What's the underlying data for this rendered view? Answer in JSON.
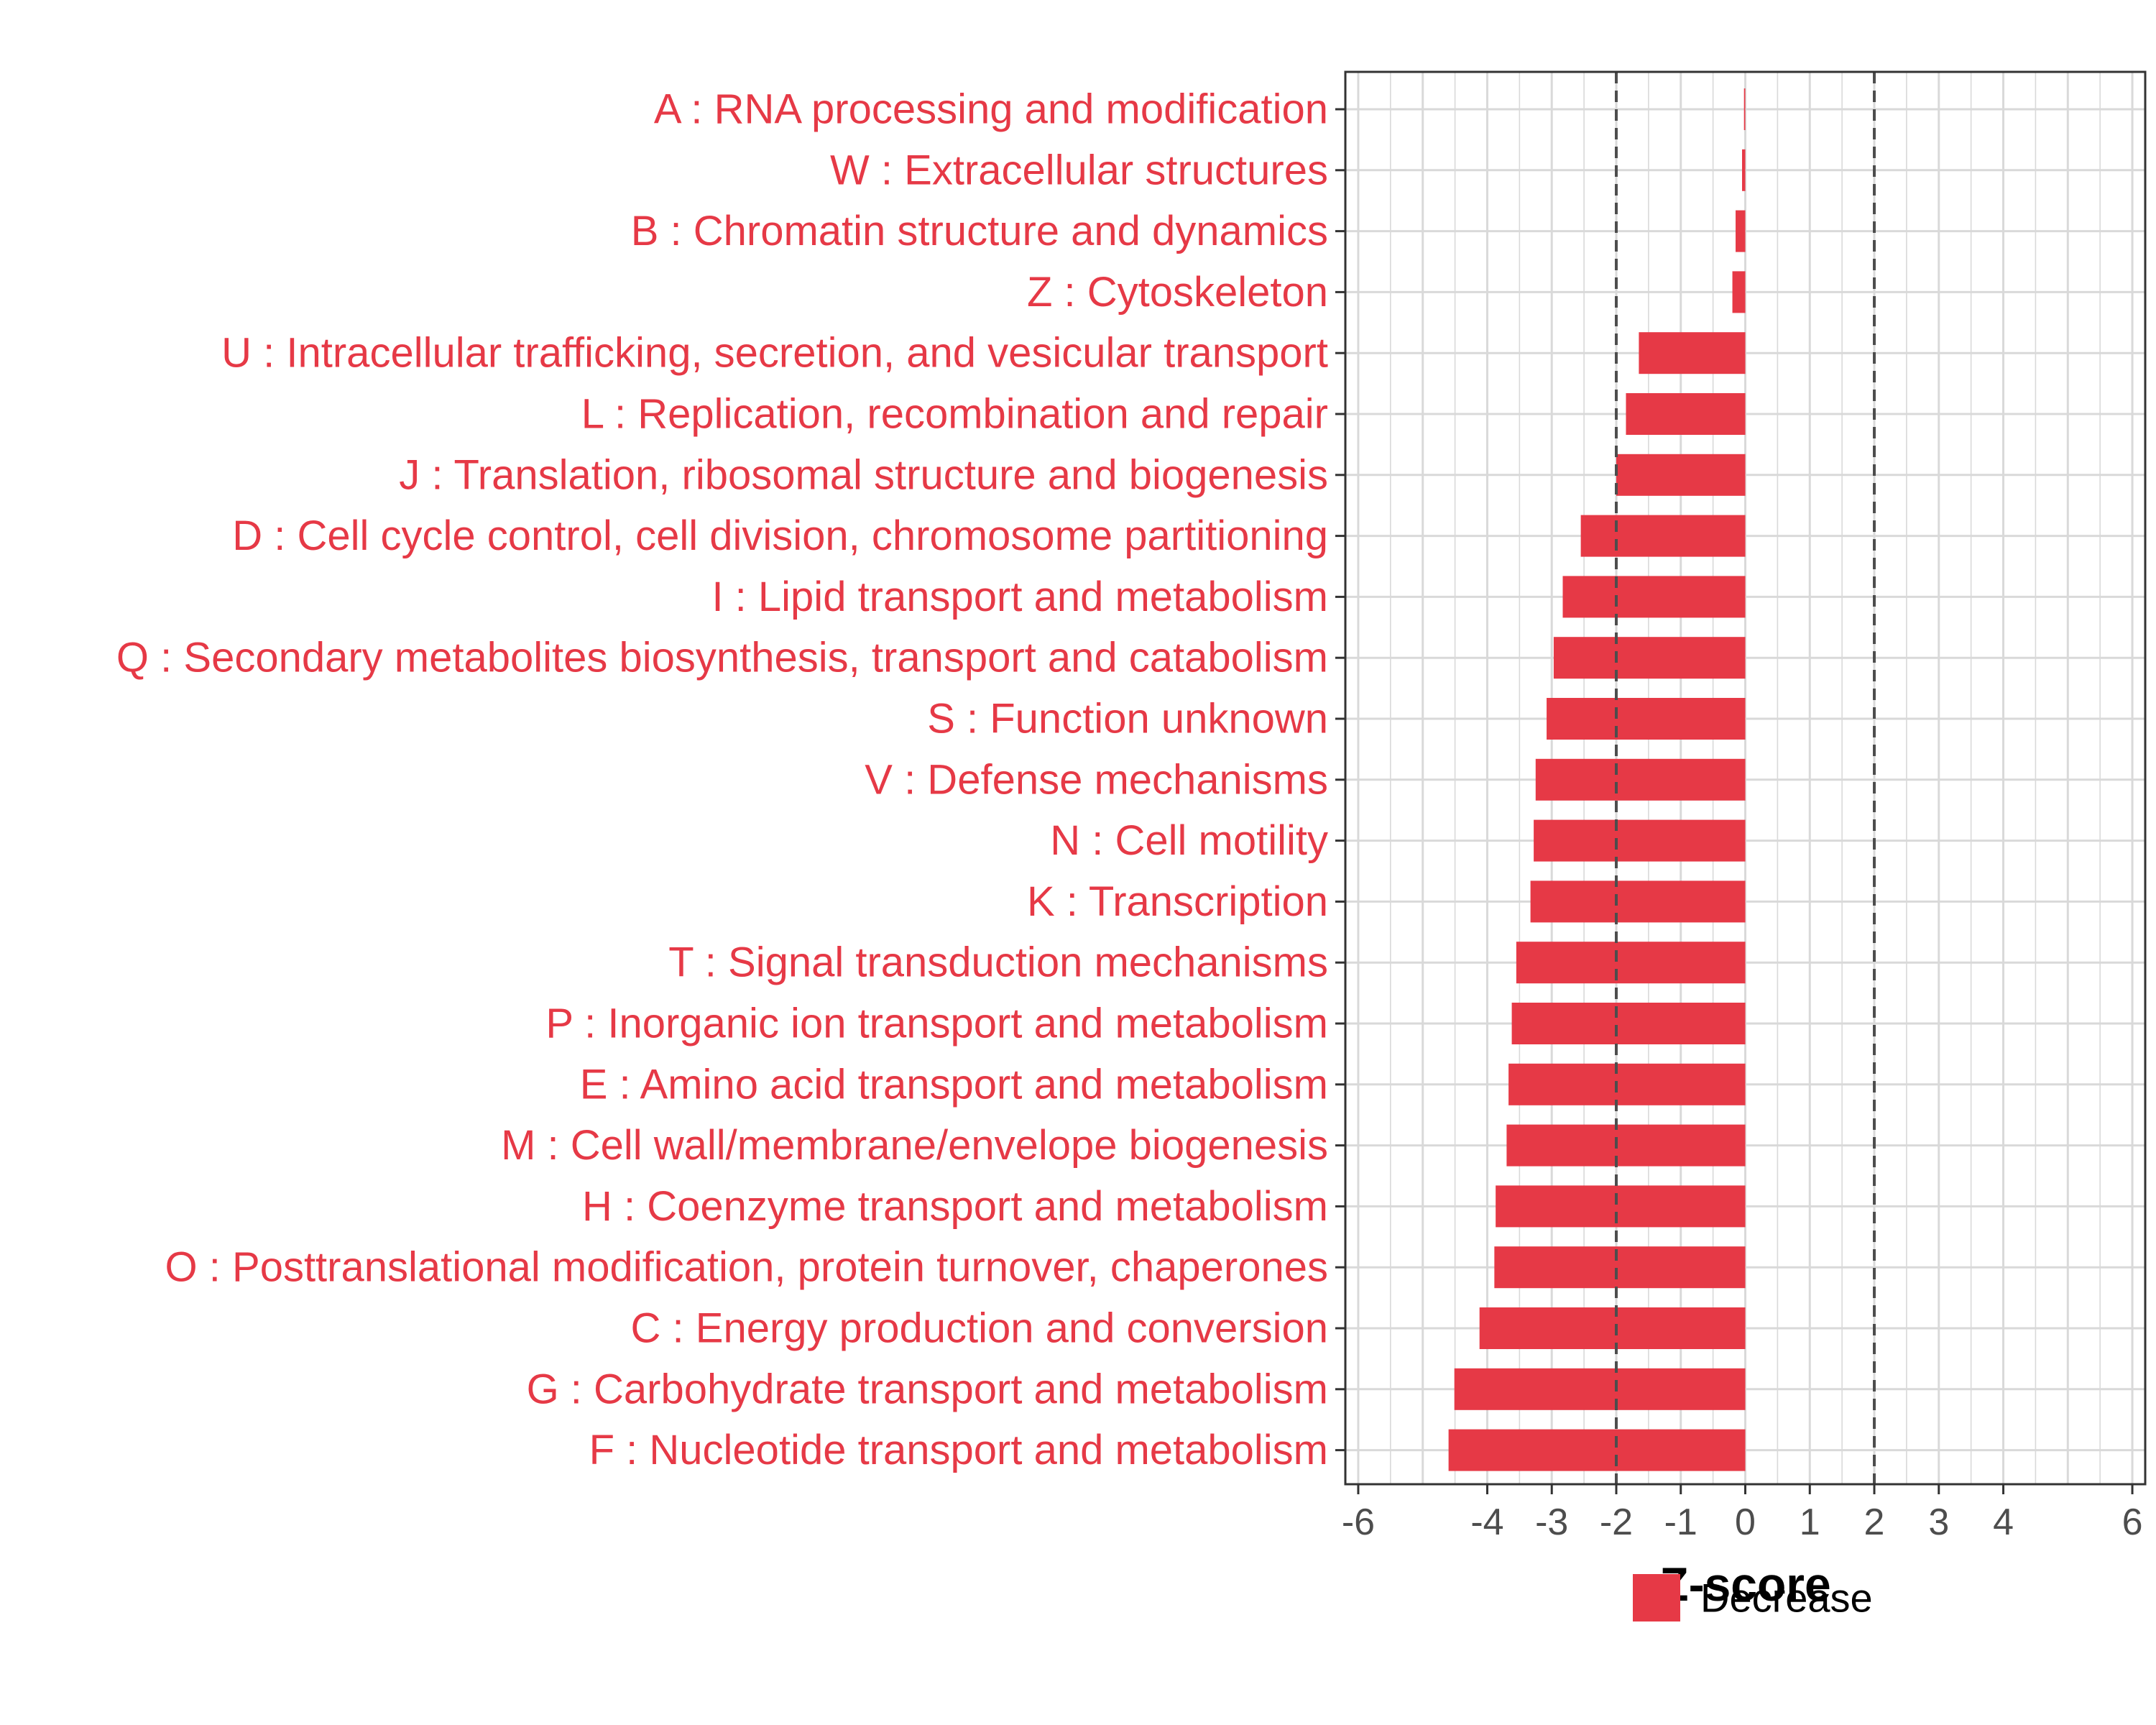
{
  "chart_data": {
    "type": "bar",
    "orientation": "horizontal",
    "categories": [
      "A : RNA processing and modification",
      "W : Extracellular structures",
      "B : Chromatin structure and dynamics",
      "Z : Cytoskeleton",
      "U : Intracellular trafficking, secretion, and vesicular transport",
      "L : Replication, recombination and repair",
      "J : Translation, ribosomal structure and biogenesis",
      "D : Cell cycle control, cell division, chromosome partitioning",
      "I : Lipid transport and metabolism",
      "Q : Secondary metabolites biosynthesis, transport and catabolism",
      "S : Function unknown",
      "V : Defense mechanisms",
      "N : Cell motility",
      "K : Transcription",
      "T : Signal transduction mechanisms",
      "P : Inorganic ion transport and metabolism",
      "E : Amino acid transport and metabolism",
      "M : Cell wall/membrane/envelope biogenesis",
      "H : Coenzyme transport and metabolism",
      "O : Posttranslational modification, protein turnover, chaperones",
      "C : Energy production and conversion",
      "G : Carbohydrate transport and metabolism",
      "F : Nucleotide transport and metabolism"
    ],
    "values": [
      -0.02,
      -0.05,
      -0.15,
      -0.2,
      -1.65,
      -1.85,
      -2.0,
      -2.55,
      -2.83,
      -2.97,
      -3.08,
      -3.25,
      -3.28,
      -3.33,
      -3.55,
      -3.62,
      -3.67,
      -3.7,
      -3.87,
      -3.89,
      -4.12,
      -4.51,
      -4.6
    ],
    "xlabel": "Z-score",
    "ylabel": "",
    "title": "",
    "xlim": [
      -6.2,
      6.2
    ],
    "xticks": [
      -6,
      -4,
      -3,
      -2,
      -1,
      0,
      1,
      2,
      3,
      4,
      6
    ],
    "reference_lines": [
      -2,
      2
    ],
    "grid": true,
    "legend": {
      "position": "bottom",
      "entries": [
        {
          "label": "Decrease",
          "color": "#e63946"
        }
      ]
    },
    "colors": {
      "bar": "#e63946",
      "label": "#e63946",
      "grid": "#d9d9d9",
      "reference_line": "#4d4d4d"
    }
  }
}
